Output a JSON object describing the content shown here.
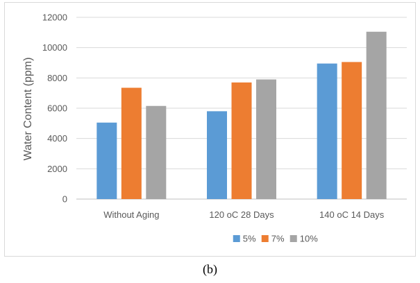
{
  "caption": "(b)",
  "chart_data": {
    "type": "bar",
    "title": "",
    "xlabel": "",
    "ylabel": "Water Content (ppm)",
    "ylim": [
      0,
      12000
    ],
    "yticks": [
      0,
      2000,
      4000,
      6000,
      8000,
      10000,
      12000
    ],
    "grid": true,
    "legend_position": "bottom",
    "categories": [
      "Without Aging",
      "120 oC 28 Days",
      "140 oC 14 Days"
    ],
    "series": [
      {
        "name": "5%",
        "color": "#5b9bd5",
        "values": [
          5050,
          5800,
          8950
        ]
      },
      {
        "name": "7%",
        "color": "#ed7d31",
        "values": [
          7350,
          7700,
          9050
        ]
      },
      {
        "name": "10%",
        "color": "#a5a5a5",
        "values": [
          6150,
          7900,
          11050
        ]
      }
    ]
  }
}
